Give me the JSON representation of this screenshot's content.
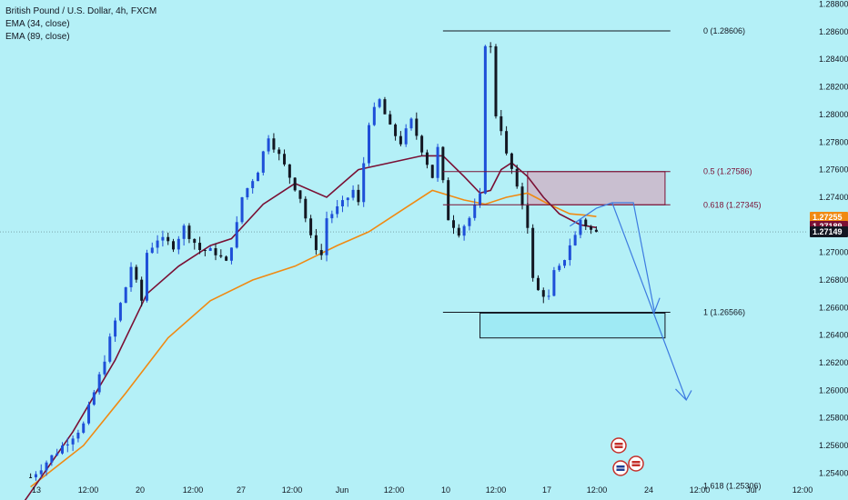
{
  "legend": {
    "symbol": "British Pound / U.S. Dollar, 4h, FXCM",
    "ema_fast": "EMA (34, close)",
    "ema_slow": "EMA (89, close)"
  },
  "colors": {
    "background": "#b4f0f7",
    "candle_up": "#1e4fd8",
    "candle_down": "#131722",
    "ema_fast": "#7a1034",
    "ema_slow": "#f08a12",
    "resistance_zone": "#c9bfd0",
    "resistance_border": "#7a1034",
    "support_zone": "#9feaf4",
    "forecast_arrow": "#3d7be0",
    "price_tag": "#131722"
  },
  "price_tags": [
    "1.27255",
    "1.27189",
    "1.27149"
  ],
  "icons": [
    "us-flag-event-icon",
    "gb-flag-event-icon",
    "us-flag-event-icon"
  ],
  "chart_data": {
    "type": "candlestick",
    "timeframe": "4h",
    "x_tick_labels": [
      "13",
      "12:00",
      "20",
      "12:00",
      "27",
      "12:00",
      "Jun",
      "12:00",
      "10",
      "12:00",
      "17",
      "12:00",
      "24",
      "12:00",
      "Jul",
      "12:00"
    ],
    "y_tick_labels": [
      "1.28800",
      "1.28600",
      "1.28400",
      "1.28200",
      "1.28000",
      "1.27800",
      "1.27600",
      "1.27400",
      "1.27200",
      "1.27000",
      "1.26800",
      "1.26600",
      "1.26400",
      "1.26200",
      "1.26000",
      "1.25800",
      "1.25600",
      "1.25400"
    ],
    "ylim": [
      1.2535,
      1.2883
    ],
    "current_price": 1.27149,
    "fib_levels": [
      {
        "label": "0 (1.28606)",
        "value": 1.28606
      },
      {
        "label": "0.5 (1.27586)",
        "value": 1.27586
      },
      {
        "label": "0.618 (1.27345)",
        "value": 1.27345
      },
      {
        "label": "1 (1.26566)",
        "value": 1.26566
      },
      {
        "label": "1.618 (1.25306)",
        "value": 1.25306
      }
    ],
    "zones": [
      {
        "name": "resistance",
        "bar_from": 96,
        "bar_to": 122,
        "low": 1.27345,
        "high": 1.27586
      },
      {
        "name": "support",
        "bar_from": 87,
        "bar_to": 122,
        "low": 1.2638,
        "high": 1.2656
      }
    ],
    "forecast_path": [
      [
        104,
        1.2719
      ],
      [
        109,
        1.2732
      ],
      [
        112,
        1.2736
      ],
      [
        116,
        1.2736
      ],
      [
        120,
        1.2657
      ],
      [
        121,
        1.2667
      ],
      [
        112,
        1.2736
      ],
      [
        126,
        1.2593
      ],
      [
        124,
        1.2601
      ],
      [
        126,
        1.2593
      ],
      [
        127,
        1.26
      ]
    ],
    "close_path": [
      [
        2,
        1.2537
      ],
      [
        6,
        1.2552
      ],
      [
        12,
        1.2575
      ],
      [
        15,
        1.261
      ],
      [
        18,
        1.265
      ],
      [
        20,
        1.2675
      ],
      [
        21,
        1.269
      ],
      [
        23,
        1.2665
      ],
      [
        24,
        1.27
      ],
      [
        26,
        1.271
      ],
      [
        29,
        1.2705
      ],
      [
        31,
        1.2718
      ],
      [
        34,
        1.2702
      ],
      [
        37,
        1.27
      ],
      [
        39,
        1.2692
      ],
      [
        41,
        1.272
      ],
      [
        42,
        1.274
      ],
      [
        45,
        1.276
      ],
      [
        47,
        1.2785
      ],
      [
        49,
        1.277
      ],
      [
        51,
        1.2755
      ],
      [
        53,
        1.274
      ],
      [
        55,
        1.271
      ],
      [
        57,
        1.2698
      ],
      [
        58,
        1.2725
      ],
      [
        61,
        1.2735
      ],
      [
        63,
        1.2745
      ],
      [
        64,
        1.2735
      ],
      [
        66,
        1.2795
      ],
      [
        68,
        1.281
      ],
      [
        70,
        1.279
      ],
      [
        72,
        1.278
      ],
      [
        74,
        1.2795
      ],
      [
        76,
        1.2775
      ],
      [
        78,
        1.2755
      ],
      [
        79,
        1.2775
      ],
      [
        81,
        1.2725
      ],
      [
        83,
        1.2715
      ],
      [
        85,
        1.2725
      ],
      [
        86,
        1.2732
      ],
      [
        87,
        1.274
      ],
      [
        88,
        1.2852
      ],
      [
        89,
        1.2848
      ],
      [
        90,
        1.28
      ],
      [
        91,
        1.279
      ],
      [
        92,
        1.277
      ],
      [
        93,
        1.276
      ],
      [
        94,
        1.2745
      ],
      [
        95,
        1.2735
      ],
      [
        96,
        1.272
      ],
      [
        97,
        1.268
      ],
      [
        98,
        1.2672
      ],
      [
        99,
        1.267
      ],
      [
        100,
        1.2667
      ],
      [
        101,
        1.2685
      ],
      [
        102,
        1.2688
      ],
      [
        103,
        1.2696
      ],
      [
        104,
        1.2706
      ],
      [
        105,
        1.2712
      ],
      [
        106,
        1.2724
      ],
      [
        107,
        1.272
      ],
      [
        108,
        1.2716
      ],
      [
        109,
        1.2714
      ]
    ],
    "ema_34": [
      [
        0,
        1.2515
      ],
      [
        10,
        1.257
      ],
      [
        18,
        1.2622
      ],
      [
        24,
        1.267
      ],
      [
        30,
        1.269
      ],
      [
        36,
        1.2705
      ],
      [
        40,
        1.271
      ],
      [
        46,
        1.2735
      ],
      [
        52,
        1.275
      ],
      [
        58,
        1.274
      ],
      [
        64,
        1.276
      ],
      [
        70,
        1.2765
      ],
      [
        76,
        1.277
      ],
      [
        80,
        1.277
      ],
      [
        84,
        1.2755
      ],
      [
        87,
        1.2743
      ],
      [
        89,
        1.2745
      ],
      [
        91,
        1.276
      ],
      [
        93,
        1.2765
      ],
      [
        96,
        1.2755
      ],
      [
        99,
        1.274
      ],
      [
        102,
        1.2728
      ],
      [
        106,
        1.272
      ],
      [
        109,
        1.2718
      ]
    ],
    "ema_89": [
      [
        2,
        1.253
      ],
      [
        12,
        1.256
      ],
      [
        20,
        1.2598
      ],
      [
        28,
        1.2638
      ],
      [
        36,
        1.2665
      ],
      [
        44,
        1.268
      ],
      [
        52,
        1.269
      ],
      [
        60,
        1.2705
      ],
      [
        66,
        1.2715
      ],
      [
        72,
        1.273
      ],
      [
        78,
        1.2745
      ],
      [
        84,
        1.2738
      ],
      [
        88,
        1.2735
      ],
      [
        92,
        1.274
      ],
      [
        96,
        1.2743
      ],
      [
        100,
        1.2735
      ],
      [
        104,
        1.2728
      ],
      [
        107,
        1.2727
      ],
      [
        109,
        1.2726
      ]
    ]
  }
}
